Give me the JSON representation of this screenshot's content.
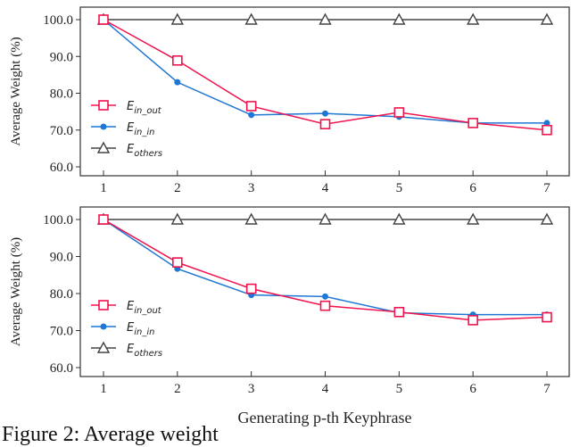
{
  "chart_data": [
    {
      "type": "line",
      "x": [
        1,
        2,
        3,
        4,
        5,
        6,
        7
      ],
      "xticks": [
        "1",
        "2",
        "3",
        "4",
        "5",
        "6",
        "7"
      ],
      "ylabel": "Average Weight (%)",
      "yticks": [
        "60.0",
        "70.0",
        "80.0",
        "90.0",
        "100.0"
      ],
      "ylim": [
        60,
        100
      ],
      "legend_position": "left",
      "series": [
        {
          "name": "E",
          "sub": "in_out",
          "color": "#f0134d",
          "marker": "square",
          "values": [
            100,
            88.9,
            76.5,
            71.6,
            74.8,
            71.9,
            70.0
          ]
        },
        {
          "name": "E",
          "sub": "in_in",
          "color": "#1f77d4",
          "marker": "circle",
          "values": [
            100,
            83.0,
            74.1,
            74.5,
            73.6,
            71.9,
            71.9
          ]
        },
        {
          "name": "E",
          "sub": "others",
          "color": "#444444",
          "marker": "triangle",
          "values": [
            100,
            100,
            100,
            100,
            100,
            100,
            100
          ]
        }
      ]
    },
    {
      "type": "line",
      "x": [
        1,
        2,
        3,
        4,
        5,
        6,
        7
      ],
      "xticks": [
        "1",
        "2",
        "3",
        "4",
        "5",
        "6",
        "7"
      ],
      "xlabel": "Generating p-th Keyphrase",
      "ylabel": "Average Weight (%)",
      "yticks": [
        "60.0",
        "70.0",
        "80.0",
        "90.0",
        "100.0"
      ],
      "ylim": [
        60,
        100
      ],
      "legend_position": "left",
      "series": [
        {
          "name": "E",
          "sub": "in_out",
          "color": "#f0134d",
          "marker": "square",
          "values": [
            100,
            88.4,
            81.3,
            76.7,
            75.0,
            72.8,
            73.6
          ]
        },
        {
          "name": "E",
          "sub": "in_in",
          "color": "#1f77d4",
          "marker": "circle",
          "values": [
            100,
            86.7,
            79.6,
            79.2,
            74.8,
            74.3,
            74.3
          ]
        },
        {
          "name": "E",
          "sub": "others",
          "color": "#444444",
          "marker": "triangle",
          "values": [
            100,
            100,
            100,
            100,
            100,
            100,
            100
          ]
        }
      ]
    }
  ],
  "caption": "Figure 2: Average weight"
}
